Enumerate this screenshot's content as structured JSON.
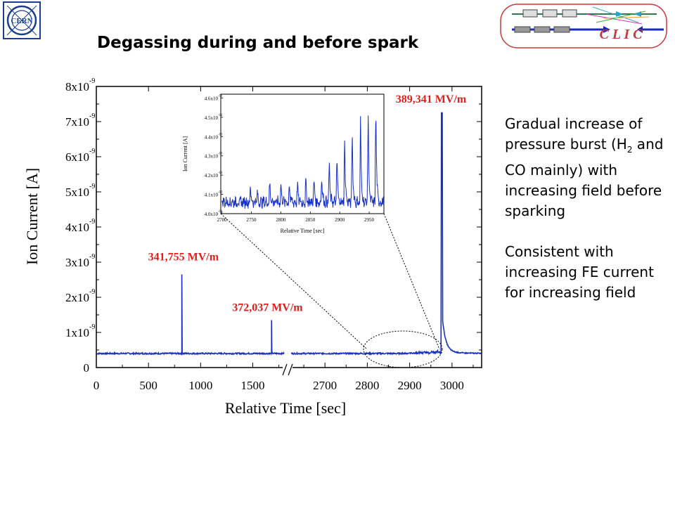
{
  "title": "Degassing during and before spark",
  "logos": {
    "cern_text": "CERN",
    "clic_text": "C L I C"
  },
  "side_text": {
    "para1_pre": "Gradual increase of pressure burst (H",
    "para1_sub": "2",
    "para1_post": " and CO mainly) with increasing field before sparking",
    "para2": "Consistent with increasing FE current for increasing field"
  },
  "chart_data": {
    "type": "line",
    "ylabel": "Ion Current [A]",
    "xlabel": "Relative Time [sec]",
    "y_range": [
      0,
      8e-09
    ],
    "y_tick_labels": [
      "0",
      "1x10",
      "2x10",
      "3x10",
      "4x10",
      "5x10",
      "6x10",
      "7x10",
      "8x10"
    ],
    "y_tick_exp": "-9",
    "x_segment1": {
      "range": [
        0,
        1800
      ],
      "ticks": [
        0,
        500,
        1000,
        1500
      ]
    },
    "x_segment2": {
      "range": [
        2620,
        3070
      ],
      "ticks": [
        2700,
        2800,
        2900,
        3000
      ]
    },
    "x_tick_labels": [
      "0",
      "500",
      "1000",
      "1500",
      "2700",
      "2800",
      "2900",
      "3000"
    ],
    "baseline": 4e-10,
    "spikes": [
      {
        "segment": 1,
        "x": 820,
        "y": 2.65e-09,
        "label": "341,755 MV/m"
      },
      {
        "segment": 1,
        "x": 1680,
        "y": 1.35e-09,
        "label": "372,037 MV/m"
      },
      {
        "segment": 2,
        "x": 2975,
        "y": 7.25e-09,
        "label": "389,341 MV/m"
      }
    ],
    "inset": {
      "xlabel": "Relative Time [sec]",
      "ylabel": "Ion Current [A]",
      "x_range": [
        2700,
        2975
      ],
      "x_ticks": [
        2700,
        2750,
        2800,
        2850,
        2900,
        2950
      ],
      "y_range": [
        4e-11,
        4.62e-11
      ],
      "y_ticks_mantissa": [
        "4.0x10",
        "4.1x10",
        "4.2x10",
        "4.3x10",
        "4.4x10",
        "4.5x10",
        "4.6x10"
      ],
      "y_tick_exp": "-11",
      "peaks": [
        {
          "x": 2748,
          "y": 4.14e-11
        },
        {
          "x": 2760,
          "y": 4.11e-11
        },
        {
          "x": 2781,
          "y": 4.17e-11
        },
        {
          "x": 2800,
          "y": 4.16e-11
        },
        {
          "x": 2814,
          "y": 4.16e-11
        },
        {
          "x": 2828,
          "y": 4.16e-11
        },
        {
          "x": 2842,
          "y": 4.18e-11
        },
        {
          "x": 2856,
          "y": 4.19e-11
        },
        {
          "x": 2869,
          "y": 4.21e-11
        },
        {
          "x": 2882,
          "y": 4.27e-11
        },
        {
          "x": 2895,
          "y": 4.31e-11
        },
        {
          "x": 2908,
          "y": 4.4e-11
        },
        {
          "x": 2921,
          "y": 4.44e-11
        },
        {
          "x": 2935,
          "y": 4.52e-11
        },
        {
          "x": 2948,
          "y": 4.55e-11
        },
        {
          "x": 2961,
          "y": 4.6e-11
        }
      ]
    }
  }
}
